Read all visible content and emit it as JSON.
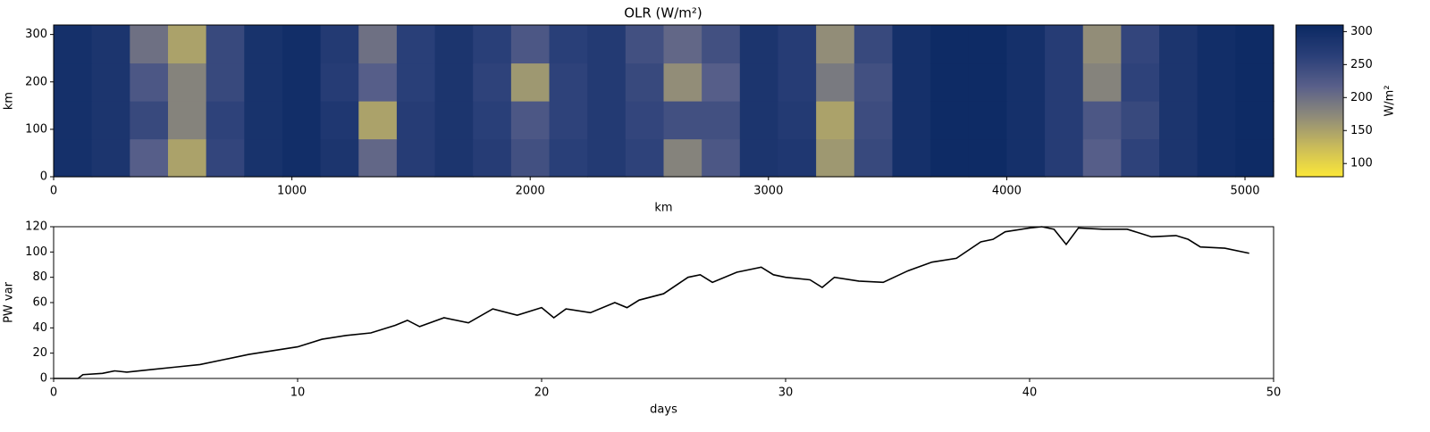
{
  "chart_data": [
    {
      "type": "heatmap",
      "title": "OLR (W/m²)",
      "xlabel": "km",
      "ylabel": "km",
      "xlim": [
        0,
        5120
      ],
      "ylim": [
        0,
        320
      ],
      "xticks": [
        0,
        1000,
        2000,
        3000,
        4000,
        5000
      ],
      "yticks": [
        0,
        100,
        200,
        300
      ],
      "x": [
        80,
        240,
        400,
        560,
        720,
        880,
        1040,
        1200,
        1360,
        1520,
        1680,
        1840,
        2000,
        2160,
        2320,
        2480,
        2640,
        2800,
        2960,
        3120,
        3280,
        3440,
        3600,
        3760,
        3920,
        4080,
        4240,
        4400,
        4560,
        4720,
        4880,
        5040
      ],
      "y": [
        40,
        120,
        200,
        280
      ],
      "z": [
        [
          295,
          285,
          220,
          150,
          255,
          290,
          300,
          285,
          210,
          270,
          285,
          270,
          240,
          265,
          275,
          260,
          180,
          230,
          285,
          280,
          160,
          250,
          295,
          305,
          305,
          295,
          270,
          220,
          260,
          285,
          300,
          305
        ],
        [
          295,
          285,
          250,
          180,
          260,
          290,
          300,
          280,
          150,
          270,
          285,
          265,
          230,
          260,
          275,
          255,
          240,
          240,
          285,
          275,
          150,
          245,
          295,
          305,
          305,
          295,
          270,
          230,
          250,
          285,
          300,
          305
        ],
        [
          295,
          285,
          230,
          180,
          250,
          290,
          300,
          270,
          220,
          265,
          285,
          260,
          160,
          260,
          275,
          250,
          170,
          220,
          285,
          270,
          190,
          240,
          295,
          305,
          305,
          295,
          270,
          180,
          260,
          285,
          300,
          305
        ],
        [
          295,
          285,
          200,
          150,
          250,
          290,
          300,
          275,
          200,
          265,
          285,
          265,
          230,
          265,
          275,
          240,
          210,
          240,
          285,
          270,
          170,
          250,
          295,
          305,
          305,
          295,
          270,
          170,
          255,
          285,
          300,
          305
        ]
      ],
      "colormap": [
        "#fde838",
        "#c9bb5a",
        "#8f8b79",
        "#585f8a",
        "#2a3f78",
        "#0b2963"
      ],
      "clim": [
        80,
        310
      ],
      "colorbar_ticks": [
        100,
        150,
        200,
        250,
        300
      ],
      "colorbar_label": "W/m²"
    },
    {
      "type": "line",
      "xlabel": "days",
      "ylabel": "PW var",
      "xlim": [
        0,
        50
      ],
      "ylim": [
        0,
        120
      ],
      "xticks": [
        0,
        10,
        20,
        30,
        40,
        50
      ],
      "yticks": [
        0,
        20,
        40,
        60,
        80,
        100,
        120
      ],
      "series": [
        {
          "color": "#000000",
          "x": [
            0,
            1,
            1.2,
            2,
            2.5,
            3,
            4,
            5,
            6,
            7,
            8,
            9,
            10,
            11,
            12,
            13,
            14,
            14.5,
            15,
            16,
            17,
            18,
            19,
            20,
            20.5,
            21,
            22,
            23,
            23.5,
            24,
            25,
            26,
            26.5,
            27,
            28,
            29,
            29.5,
            30,
            31,
            31.5,
            32,
            33,
            34,
            35,
            36,
            37,
            38,
            38.5,
            39,
            40,
            40.5,
            41,
            41.5,
            42,
            43,
            44,
            45,
            46,
            46.5,
            47,
            48,
            49
          ],
          "values": [
            0,
            0,
            3,
            4,
            6,
            5,
            7,
            9,
            11,
            15,
            19,
            22,
            25,
            31,
            34,
            36,
            42,
            46,
            41,
            48,
            44,
            55,
            50,
            56,
            48,
            55,
            52,
            60,
            56,
            62,
            67,
            80,
            82,
            76,
            84,
            88,
            82,
            80,
            78,
            72,
            80,
            77,
            76,
            85,
            92,
            95,
            108,
            110,
            116,
            119,
            120,
            118,
            106,
            119,
            118,
            118,
            112,
            113,
            110,
            104,
            103,
            99
          ]
        }
      ]
    }
  ]
}
